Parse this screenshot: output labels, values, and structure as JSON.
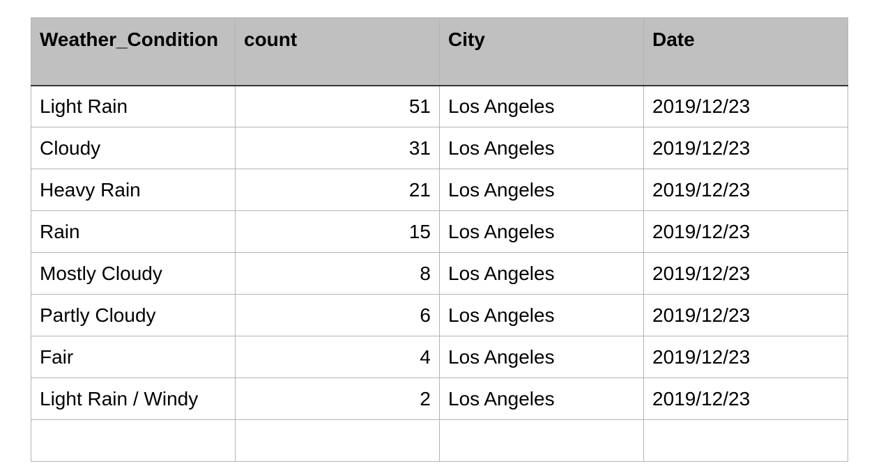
{
  "table": {
    "columns": [
      "Weather_Condition",
      "count",
      "City",
      "Date"
    ],
    "rows": [
      {
        "weather": "Light Rain",
        "count": "51",
        "city": "Los Angeles",
        "date": "2019/12/23"
      },
      {
        "weather": "Cloudy",
        "count": "31",
        "city": "Los Angeles",
        "date": "2019/12/23"
      },
      {
        "weather": "Heavy Rain",
        "count": "21",
        "city": "Los Angeles",
        "date": "2019/12/23"
      },
      {
        "weather": "Rain",
        "count": "15",
        "city": "Los Angeles",
        "date": "2019/12/23"
      },
      {
        "weather": "Mostly Cloudy",
        "count": "8",
        "city": "Los Angeles",
        "date": "2019/12/23"
      },
      {
        "weather": "Partly Cloudy",
        "count": "6",
        "city": "Los Angeles",
        "date": "2019/12/23"
      },
      {
        "weather": "Fair",
        "count": "4",
        "city": "Los Angeles",
        "date": "2019/12/23"
      },
      {
        "weather": "Light Rain / Windy",
        "count": "2",
        "city": "Los Angeles",
        "date": "2019/12/23"
      },
      {
        "weather": "",
        "count": "",
        "city": "",
        "date": ""
      }
    ]
  }
}
